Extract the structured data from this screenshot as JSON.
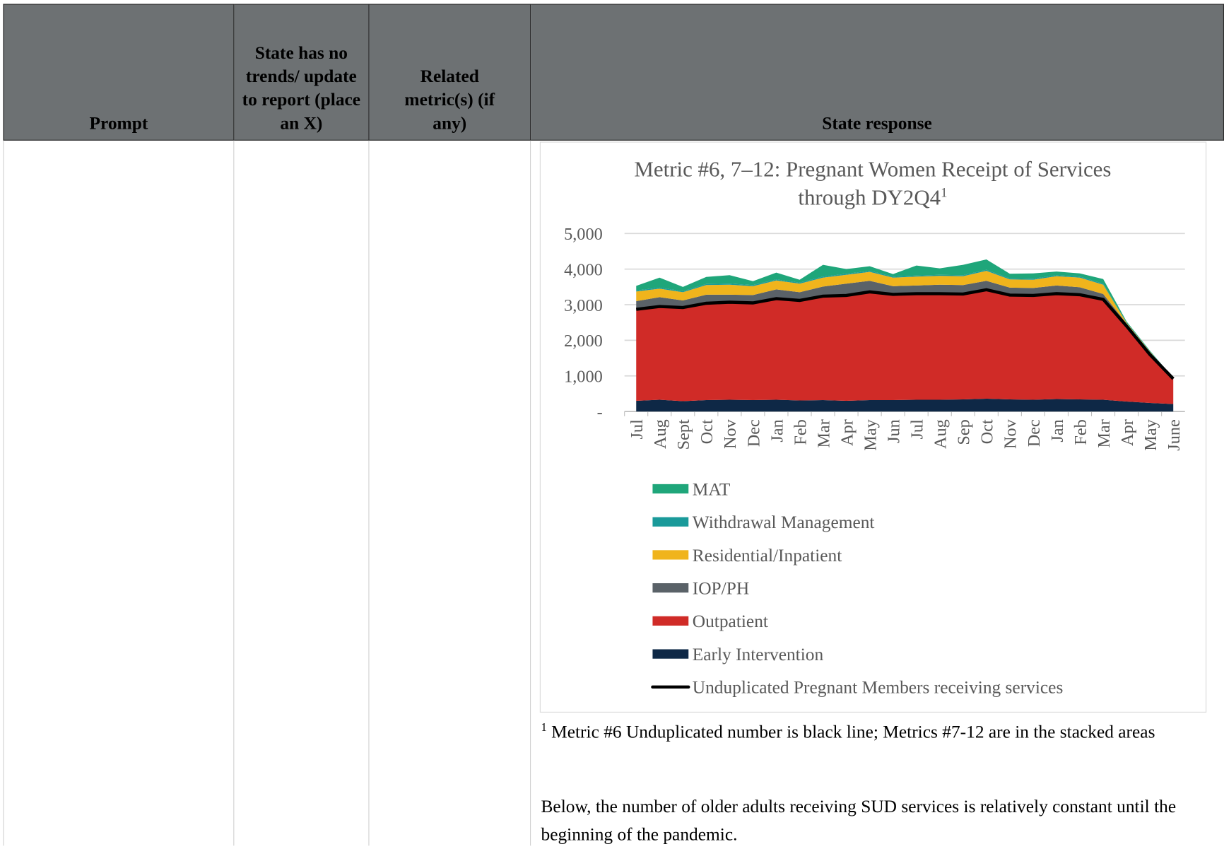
{
  "table": {
    "headers": [
      "Prompt",
      "State has no trends/ update to report (place an X)",
      "Related metric(s) (if any)",
      "State response"
    ]
  },
  "chart_data": {
    "type": "area",
    "stacked": true,
    "title": "Metric #6, 7–12: Pregnant Women Receipt of Services through DY2Q4",
    "title_superscript": "1",
    "categories": [
      "Jul",
      "Aug",
      "Sept",
      "Oct",
      "Nov",
      "Dec",
      "Jan",
      "Feb",
      "Mar",
      "Apr",
      "May",
      "Jun",
      "Jul",
      "Aug",
      "Sep",
      "Oct",
      "Nov",
      "Dec",
      "Jan",
      "Feb",
      "Mar",
      "Apr",
      "May",
      "June"
    ],
    "ylim": [
      0,
      5000
    ],
    "yticks": [
      {
        "value": 0,
        "label": "-"
      },
      {
        "value": 1000,
        "label": "1,000"
      },
      {
        "value": 2000,
        "label": "2,000"
      },
      {
        "value": 3000,
        "label": "3,000"
      },
      {
        "value": 4000,
        "label": "4,000"
      },
      {
        "value": 5000,
        "label": "5,000"
      }
    ],
    "grid": true,
    "series": [
      {
        "name": "Early Intervention",
        "color": "#0e2846",
        "values": [
          300,
          330,
          290,
          320,
          330,
          320,
          330,
          310,
          320,
          300,
          320,
          320,
          330,
          330,
          340,
          360,
          340,
          330,
          350,
          340,
          330,
          280,
          240,
          210
        ]
      },
      {
        "name": "Outpatient",
        "color": "#d02b27",
        "values": [
          2600,
          2650,
          2660,
          2760,
          2770,
          2760,
          2870,
          2840,
          2950,
          2990,
          3070,
          3000,
          3010,
          3010,
          2990,
          3090,
          2960,
          2960,
          2990,
          2970,
          2850,
          2140,
          1380,
          710
        ]
      },
      {
        "name": "IOP/PH",
        "color": "#5a6268",
        "values": [
          200,
          230,
          170,
          200,
          180,
          190,
          230,
          200,
          240,
          300,
          280,
          200,
          200,
          220,
          220,
          220,
          180,
          180,
          200,
          180,
          120,
          50,
          40,
          10
        ]
      },
      {
        "name": "Residential/Inpatient",
        "color": "#f0b41c",
        "values": [
          270,
          240,
          230,
          270,
          280,
          250,
          250,
          240,
          250,
          250,
          250,
          240,
          250,
          250,
          250,
          280,
          230,
          230,
          260,
          270,
          260,
          20,
          20,
          5
        ]
      },
      {
        "name": "Withdrawal Management",
        "color": "#1a9a9a",
        "values": [
          30,
          30,
          30,
          30,
          30,
          30,
          30,
          30,
          30,
          30,
          30,
          30,
          30,
          30,
          30,
          30,
          30,
          30,
          30,
          30,
          30,
          10,
          10,
          0
        ]
      },
      {
        "name": "MAT",
        "color": "#1fa67a",
        "values": [
          130,
          280,
          120,
          200,
          240,
          110,
          190,
          80,
          330,
          130,
          130,
          70,
          280,
          180,
          290,
          290,
          130,
          150,
          100,
          90,
          130,
          30,
          20,
          5
        ]
      },
      {
        "name": "Unduplicated Pregnant Members receiving services",
        "color": "#000000",
        "type": "line",
        "values": [
          2870,
          2950,
          2920,
          3040,
          3070,
          3050,
          3170,
          3120,
          3240,
          3260,
          3360,
          3290,
          3310,
          3310,
          3300,
          3420,
          3270,
          3260,
          3310,
          3280,
          3150,
          2400,
          1600,
          920
        ]
      }
    ]
  },
  "footnote": {
    "marker": "1",
    "text": "Metric #6 Unduplicated number is black line; Metrics #7-12 are in the stacked areas"
  },
  "paragraph": "Below, the number of older adults receiving SUD services is relatively constant until the beginning of the pandemic."
}
